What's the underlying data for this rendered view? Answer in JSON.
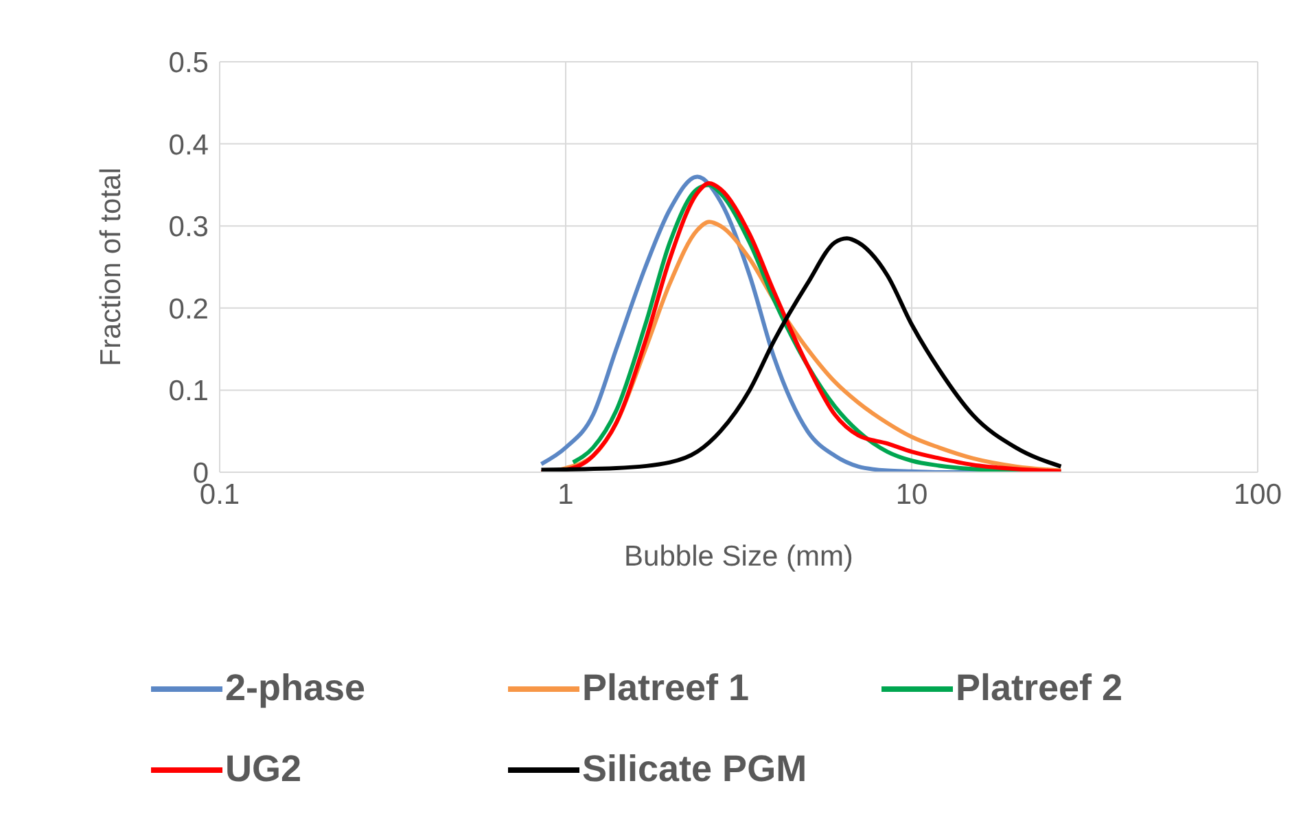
{
  "chart_data": {
    "type": "line",
    "xlabel": "Bubble Size (mm)",
    "ylabel": "Fraction of total",
    "log": "x",
    "xlim": [
      0.1,
      100
    ],
    "xticks": [
      0.1,
      1,
      10,
      100
    ],
    "ylim": [
      0,
      0.5
    ],
    "yticks": [
      0,
      0.1,
      0.2,
      0.3,
      0.4,
      0.5
    ],
    "grid": true,
    "legend": "bottom",
    "marker": "none",
    "line_style": "solid",
    "series": [
      {
        "name": "2-phase",
        "color": "#5b87c5",
        "x": [
          0.85,
          1,
          1.2,
          1.4,
          1.7,
          2,
          2.4,
          2.8,
          3.4,
          4,
          5,
          6,
          7,
          8.5,
          10,
          12,
          15,
          20,
          27
        ],
        "values": [
          0.01,
          0.03,
          0.07,
          0.15,
          0.25,
          0.32,
          0.36,
          0.33,
          0.24,
          0.14,
          0.05,
          0.02,
          0.007,
          0.002,
          0.001,
          0,
          0,
          0,
          0
        ]
      },
      {
        "name": "Platreef 1",
        "color": "#f79646",
        "x": [
          0.85,
          1,
          1.2,
          1.4,
          1.7,
          2,
          2.4,
          2.6,
          2.8,
          3.4,
          4,
          5,
          6,
          7,
          8.5,
          10,
          12,
          15,
          20,
          27
        ],
        "values": [
          0,
          0.005,
          0.02,
          0.06,
          0.15,
          0.23,
          0.295,
          0.305,
          0.3,
          0.26,
          0.21,
          0.15,
          0.11,
          0.085,
          0.06,
          0.043,
          0.03,
          0.017,
          0.007,
          0.002
        ]
      },
      {
        "name": "Platreef 2",
        "color": "#00a650",
        "x": [
          1.05,
          1.2,
          1.4,
          1.7,
          2,
          2.4,
          2.6,
          2.8,
          3.4,
          4,
          5,
          6,
          7,
          8.5,
          10,
          12,
          15,
          20,
          27
        ],
        "values": [
          0.012,
          0.03,
          0.075,
          0.18,
          0.28,
          0.345,
          0.35,
          0.34,
          0.28,
          0.21,
          0.13,
          0.08,
          0.05,
          0.025,
          0.014,
          0.008,
          0.004,
          0.002,
          0
        ]
      },
      {
        "name": "UG2",
        "color": "#ff0000",
        "x": [
          0.85,
          1,
          1.2,
          1.4,
          1.7,
          2,
          2.4,
          2.6,
          2.8,
          3.4,
          4,
          5,
          6,
          7,
          8.5,
          10,
          12,
          15,
          20,
          27
        ],
        "values": [
          0,
          0.003,
          0.02,
          0.06,
          0.16,
          0.26,
          0.34,
          0.352,
          0.345,
          0.29,
          0.22,
          0.13,
          0.07,
          0.045,
          0.035,
          0.025,
          0.017,
          0.009,
          0.004,
          0.001
        ]
      },
      {
        "name": "Silicate PGM",
        "color": "#000000",
        "x": [
          0.85,
          1.4,
          2,
          2.4,
          2.8,
          3.4,
          4,
          5,
          6,
          6.5,
          7,
          8.5,
          10,
          12,
          15,
          20,
          27
        ],
        "values": [
          0.003,
          0.005,
          0.012,
          0.025,
          0.05,
          0.1,
          0.16,
          0.23,
          0.28,
          0.285,
          0.28,
          0.24,
          0.18,
          0.125,
          0.07,
          0.03,
          0.007
        ]
      }
    ]
  }
}
